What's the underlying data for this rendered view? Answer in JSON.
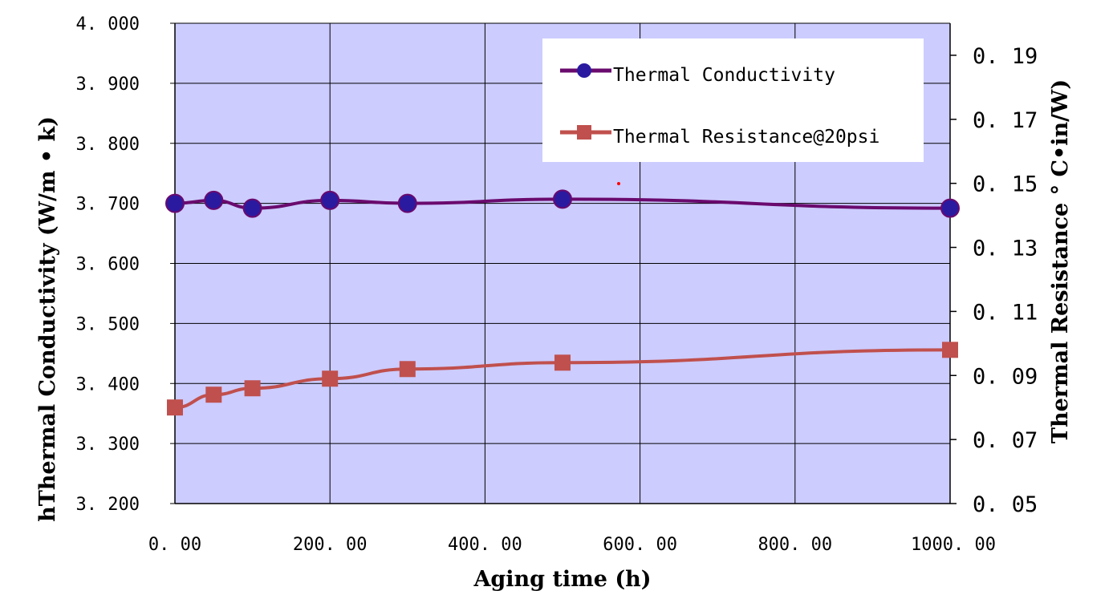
{
  "chart_data": {
    "type": "line",
    "title": "",
    "xlabel": "Aging time (h)",
    "ylabel_left": "hThermal Conductivity (W/m • k)",
    "ylabel_right": "Thermal Resistance ° C•in/W)",
    "xlim": [
      0,
      1000
    ],
    "ylim_left": [
      3.2,
      4.0
    ],
    "ylim_right": [
      0.05,
      0.2
    ],
    "x_ticks": [
      0,
      200,
      400,
      600,
      800,
      1000
    ],
    "x_tick_labels": [
      "0. 00",
      "200. 00",
      "400. 00",
      "600. 00",
      "800. 00",
      "1000. 00"
    ],
    "y_left_ticks": [
      3.2,
      3.3,
      3.4,
      3.5,
      3.6,
      3.7,
      3.8,
      3.9,
      4.0
    ],
    "y_left_tick_labels": [
      "3. 200",
      "3. 300",
      "3. 400",
      "3. 500",
      "3. 600",
      "3. 700",
      "3. 800",
      "3. 900",
      "4. 000"
    ],
    "y_right_ticks": [
      0.05,
      0.07,
      0.09,
      0.11,
      0.13,
      0.15,
      0.17,
      0.19
    ],
    "y_right_tick_labels": [
      "0. 05",
      "0. 07",
      "0. 09",
      "0. 11",
      "0. 13",
      "0. 15",
      "0. 17",
      "0. 19"
    ],
    "grid": true,
    "legend_position": "top-right",
    "series": [
      {
        "name": "Thermal Conductivity",
        "axis": "left",
        "marker": "circle",
        "color": "#6a0a6e",
        "x": [
          0,
          50,
          100,
          200,
          300,
          500,
          1000
        ],
        "values": [
          3.7,
          3.705,
          3.692,
          3.705,
          3.7,
          3.707,
          3.692
        ]
      },
      {
        "name": "Thermal Resistance@20psi",
        "axis": "right",
        "marker": "square",
        "color": "#c0504d",
        "x": [
          0,
          50,
          100,
          200,
          300,
          500,
          1000
        ],
        "values": [
          0.08,
          0.084,
          0.086,
          0.089,
          0.092,
          0.094,
          0.098
        ]
      }
    ],
    "colors": {
      "plot_background": "#ccccff",
      "grid": "#000000"
    }
  }
}
